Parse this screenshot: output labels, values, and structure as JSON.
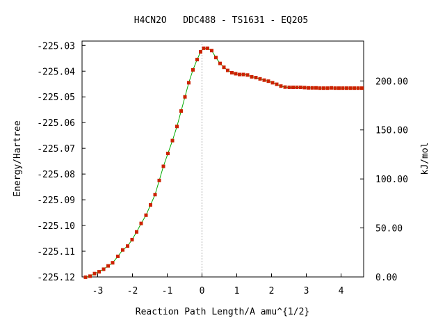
{
  "chart_data": {
    "type": "line",
    "title": "H4CN2O   DDC488 - TS1631 - EQ205",
    "xlabel": "Reaction Path Length/A amu^{1/2}",
    "ylabel": "Energy/Hartree",
    "y2label": "kJ/mol",
    "xlim": [
      -3.45,
      4.65
    ],
    "ylim": [
      -225.12,
      -225.0283
    ],
    "y2lim": [
      0,
      240.7
    ],
    "grid": false,
    "legend": "none",
    "x_ticks": [
      {
        "value": -3,
        "label": "-3"
      },
      {
        "value": -2,
        "label": "-2"
      },
      {
        "value": -1,
        "label": "-1"
      },
      {
        "value": 0,
        "label": "0"
      },
      {
        "value": 1,
        "label": "1"
      },
      {
        "value": 2,
        "label": "2"
      },
      {
        "value": 3,
        "label": "3"
      },
      {
        "value": 4,
        "label": "4"
      }
    ],
    "y_ticks": [
      {
        "value": -225.03,
        "label": "-225.03"
      },
      {
        "value": -225.04,
        "label": "-225.04"
      },
      {
        "value": -225.05,
        "label": "-225.05"
      },
      {
        "value": -225.06,
        "label": "-225.06"
      },
      {
        "value": -225.07,
        "label": "-225.07"
      },
      {
        "value": -225.08,
        "label": "-225.08"
      },
      {
        "value": -225.09,
        "label": "-225.09"
      },
      {
        "value": -225.1,
        "label": "-225.10"
      },
      {
        "value": -225.11,
        "label": "-225.11"
      },
      {
        "value": -225.12,
        "label": "-225.12"
      }
    ],
    "y2_ticks": [
      {
        "value": 0,
        "label": "0.00"
      },
      {
        "value": 50,
        "label": "50.00"
      },
      {
        "value": 100,
        "label": "100.00"
      },
      {
        "value": 150,
        "label": "150.00"
      },
      {
        "value": 200,
        "label": "200.00"
      }
    ],
    "ts_line_x": 0,
    "colors": {
      "line": "#00aa00",
      "marker": "#cc2200",
      "ts_line": "#aaaaaa"
    },
    "series": [
      {
        "x": [
          -3.35,
          -3.22,
          -3.09,
          -2.96,
          -2.83,
          -2.7,
          -2.57,
          -2.42,
          -2.28,
          -2.14,
          -2.01,
          -1.88,
          -1.75,
          -1.61,
          -1.48,
          -1.35,
          -1.23,
          -1.11,
          -0.98,
          -0.85,
          -0.72,
          -0.6,
          -0.49,
          -0.38,
          -0.26,
          -0.14,
          -0.04,
          0.05,
          0.16,
          0.28,
          0.4,
          0.52,
          0.63,
          0.74,
          0.86,
          0.97,
          1.08,
          1.19,
          1.31,
          1.43,
          1.55,
          1.67,
          1.79,
          1.91,
          2.03,
          2.15,
          2.27,
          2.39,
          2.51,
          2.62,
          2.73,
          2.84,
          2.95,
          3.06,
          3.17,
          3.28,
          3.39,
          3.5,
          3.61,
          3.72,
          3.83,
          3.94,
          4.05,
          4.16,
          4.27,
          4.38,
          4.49,
          4.6
        ],
        "y": [
          -225.1201,
          -225.1197,
          -225.1187,
          -225.118,
          -225.117,
          -225.1157,
          -225.1145,
          -225.112,
          -225.1095,
          -225.108,
          -225.1055,
          -225.1025,
          -225.0992,
          -225.096,
          -225.092,
          -225.088,
          -225.0825,
          -225.077,
          -225.072,
          -225.067,
          -225.0615,
          -225.0555,
          -225.05,
          -225.0445,
          -225.0395,
          -225.0355,
          -225.0325,
          -225.0311,
          -225.0311,
          -225.032,
          -225.0347,
          -225.037,
          -225.0385,
          -225.0397,
          -225.0406,
          -225.041,
          -225.0413,
          -225.0413,
          -225.0415,
          -225.0422,
          -225.0425,
          -225.043,
          -225.0435,
          -225.0439,
          -225.0445,
          -225.0451,
          -225.0458,
          -225.0462,
          -225.0463,
          -225.0463,
          -225.0463,
          -225.0463,
          -225.0464,
          -225.0465,
          -225.0465,
          -225.0465,
          -225.0466,
          -225.0466,
          -225.0466,
          -225.0465,
          -225.0466,
          -225.0466,
          -225.0466,
          -225.0466,
          -225.0466,
          -225.0466,
          -225.0466,
          -225.0466
        ]
      }
    ]
  }
}
